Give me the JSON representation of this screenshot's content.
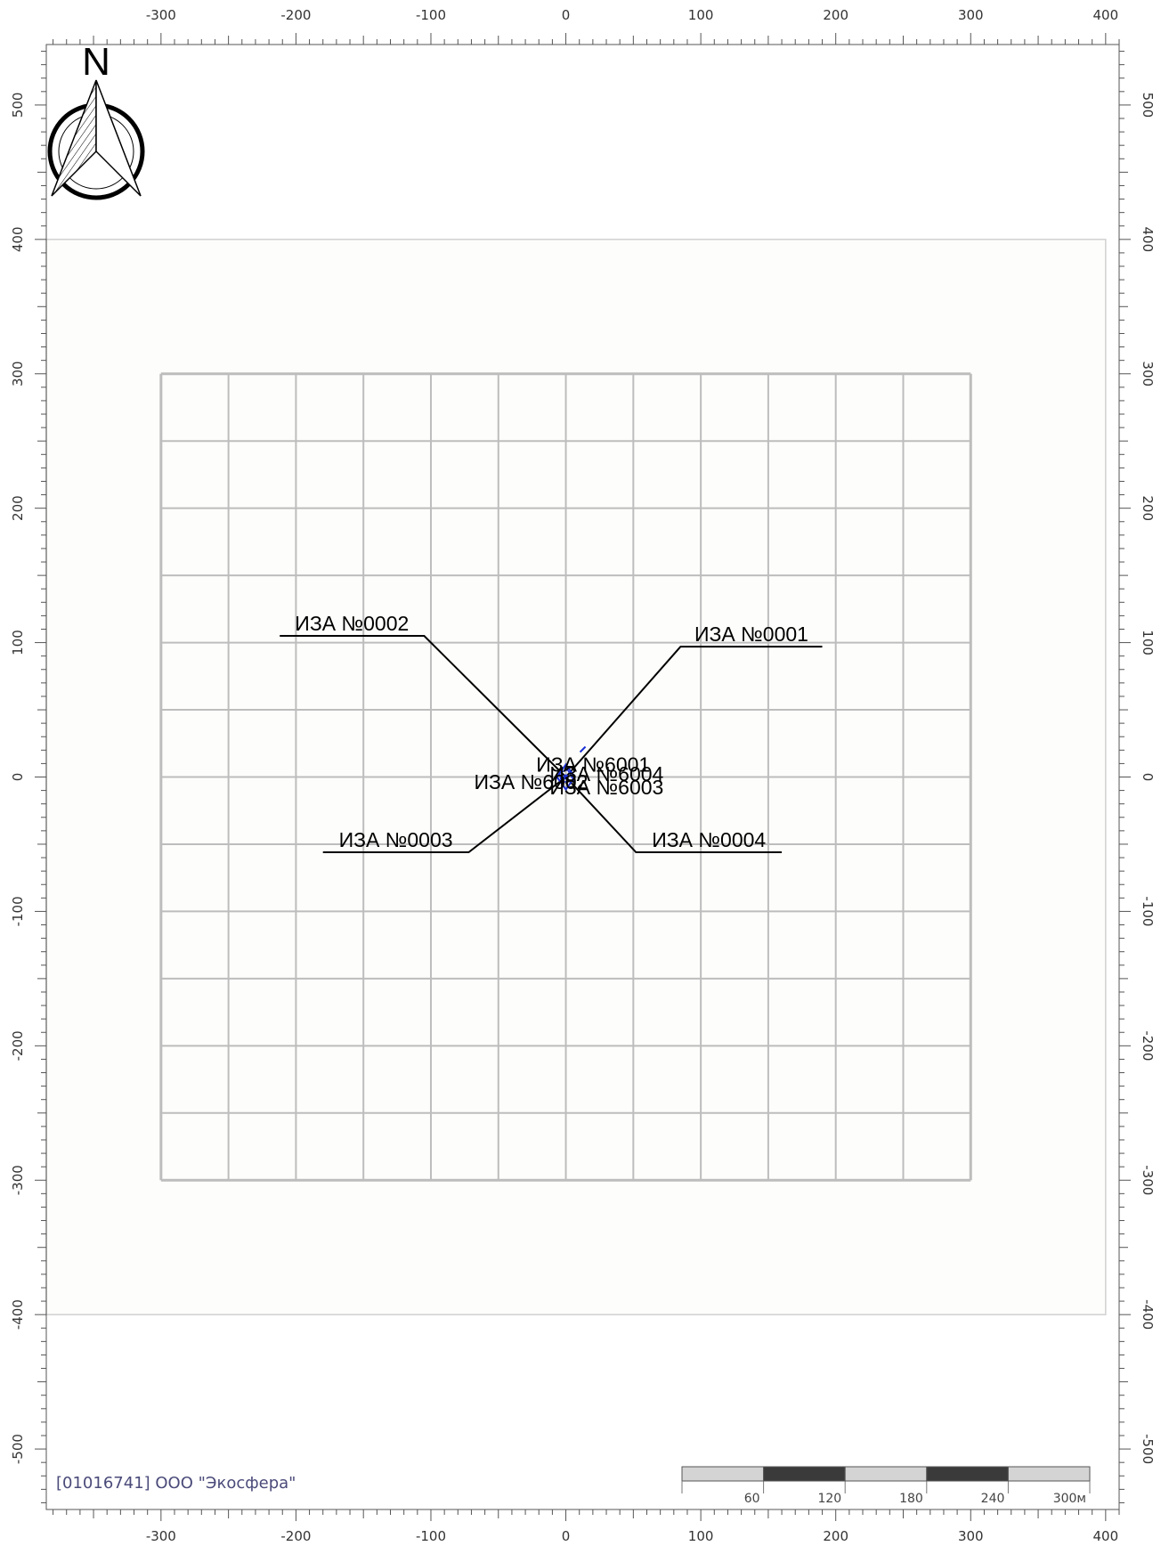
{
  "map": {
    "x_range": [
      -385,
      410
    ],
    "y_range": [
      -545,
      545
    ],
    "x_ticks": [
      -300,
      -200,
      -100,
      0,
      100,
      200,
      300,
      400
    ],
    "y_ticks": [
      500,
      400,
      300,
      200,
      100,
      0,
      -100,
      -200,
      -300,
      -400,
      -500
    ],
    "tick_labels_x": [
      "-300",
      "-200",
      "-100",
      "0",
      "100",
      "200",
      "300",
      "400"
    ],
    "tick_labels_y": [
      "500",
      "400",
      "300",
      "200",
      "100",
      "0",
      "-100",
      "-200",
      "-300",
      "-400",
      "-500"
    ],
    "sanitary_zone": {
      "x": [
        -385,
        400
      ],
      "y": [
        -400,
        400
      ]
    },
    "calc_grid": {
      "x": [
        -300,
        300
      ],
      "y": [
        -300,
        300
      ],
      "step": 50
    },
    "colors": {
      "grid": "#bdbdbd",
      "zone": "#d0d0d0",
      "zone_fill": "#fdfdfb",
      "source": "#1a2fd6",
      "leader": "#000000"
    }
  },
  "north_arrow": {
    "letter": "N"
  },
  "sources": [
    {
      "label": "ИЗА №0001",
      "point": [
        0,
        0
      ],
      "elbow": [
        85,
        97
      ],
      "end": [
        190,
        97
      ],
      "side": "right"
    },
    {
      "label": "ИЗА №0002",
      "point": [
        0,
        0
      ],
      "elbow": [
        -105,
        105
      ],
      "end": [
        -212,
        105
      ],
      "side": "left"
    },
    {
      "label": "ИЗА №0003",
      "point": [
        0,
        0
      ],
      "elbow": [
        -72,
        -56
      ],
      "end": [
        -180,
        -56
      ],
      "side": "left"
    },
    {
      "label": "ИЗА №0004",
      "point": [
        0,
        0
      ],
      "elbow": [
        52,
        -56
      ],
      "end": [
        160,
        -56
      ],
      "side": "right"
    }
  ],
  "center_labels": [
    {
      "label": "ИЗА №6001",
      "x": -22,
      "y": 4
    },
    {
      "label": "ИЗА №6002",
      "x": -68,
      "y": -9
    },
    {
      "label": "ИЗА №6004",
      "x": -12,
      "y": -3
    },
    {
      "label": "ИЗА №6003",
      "x": -12,
      "y": -13
    }
  ],
  "scale_bar": {
    "labels": [
      "60",
      "120",
      "180",
      "240",
      "300м"
    ],
    "segment_colors": [
      "#d4d4d4",
      "#3a3a3a",
      "#d4d4d4",
      "#3a3a3a",
      "#d4d4d4"
    ]
  },
  "owner_text": "[01016741] ООО \"Экосфера\""
}
